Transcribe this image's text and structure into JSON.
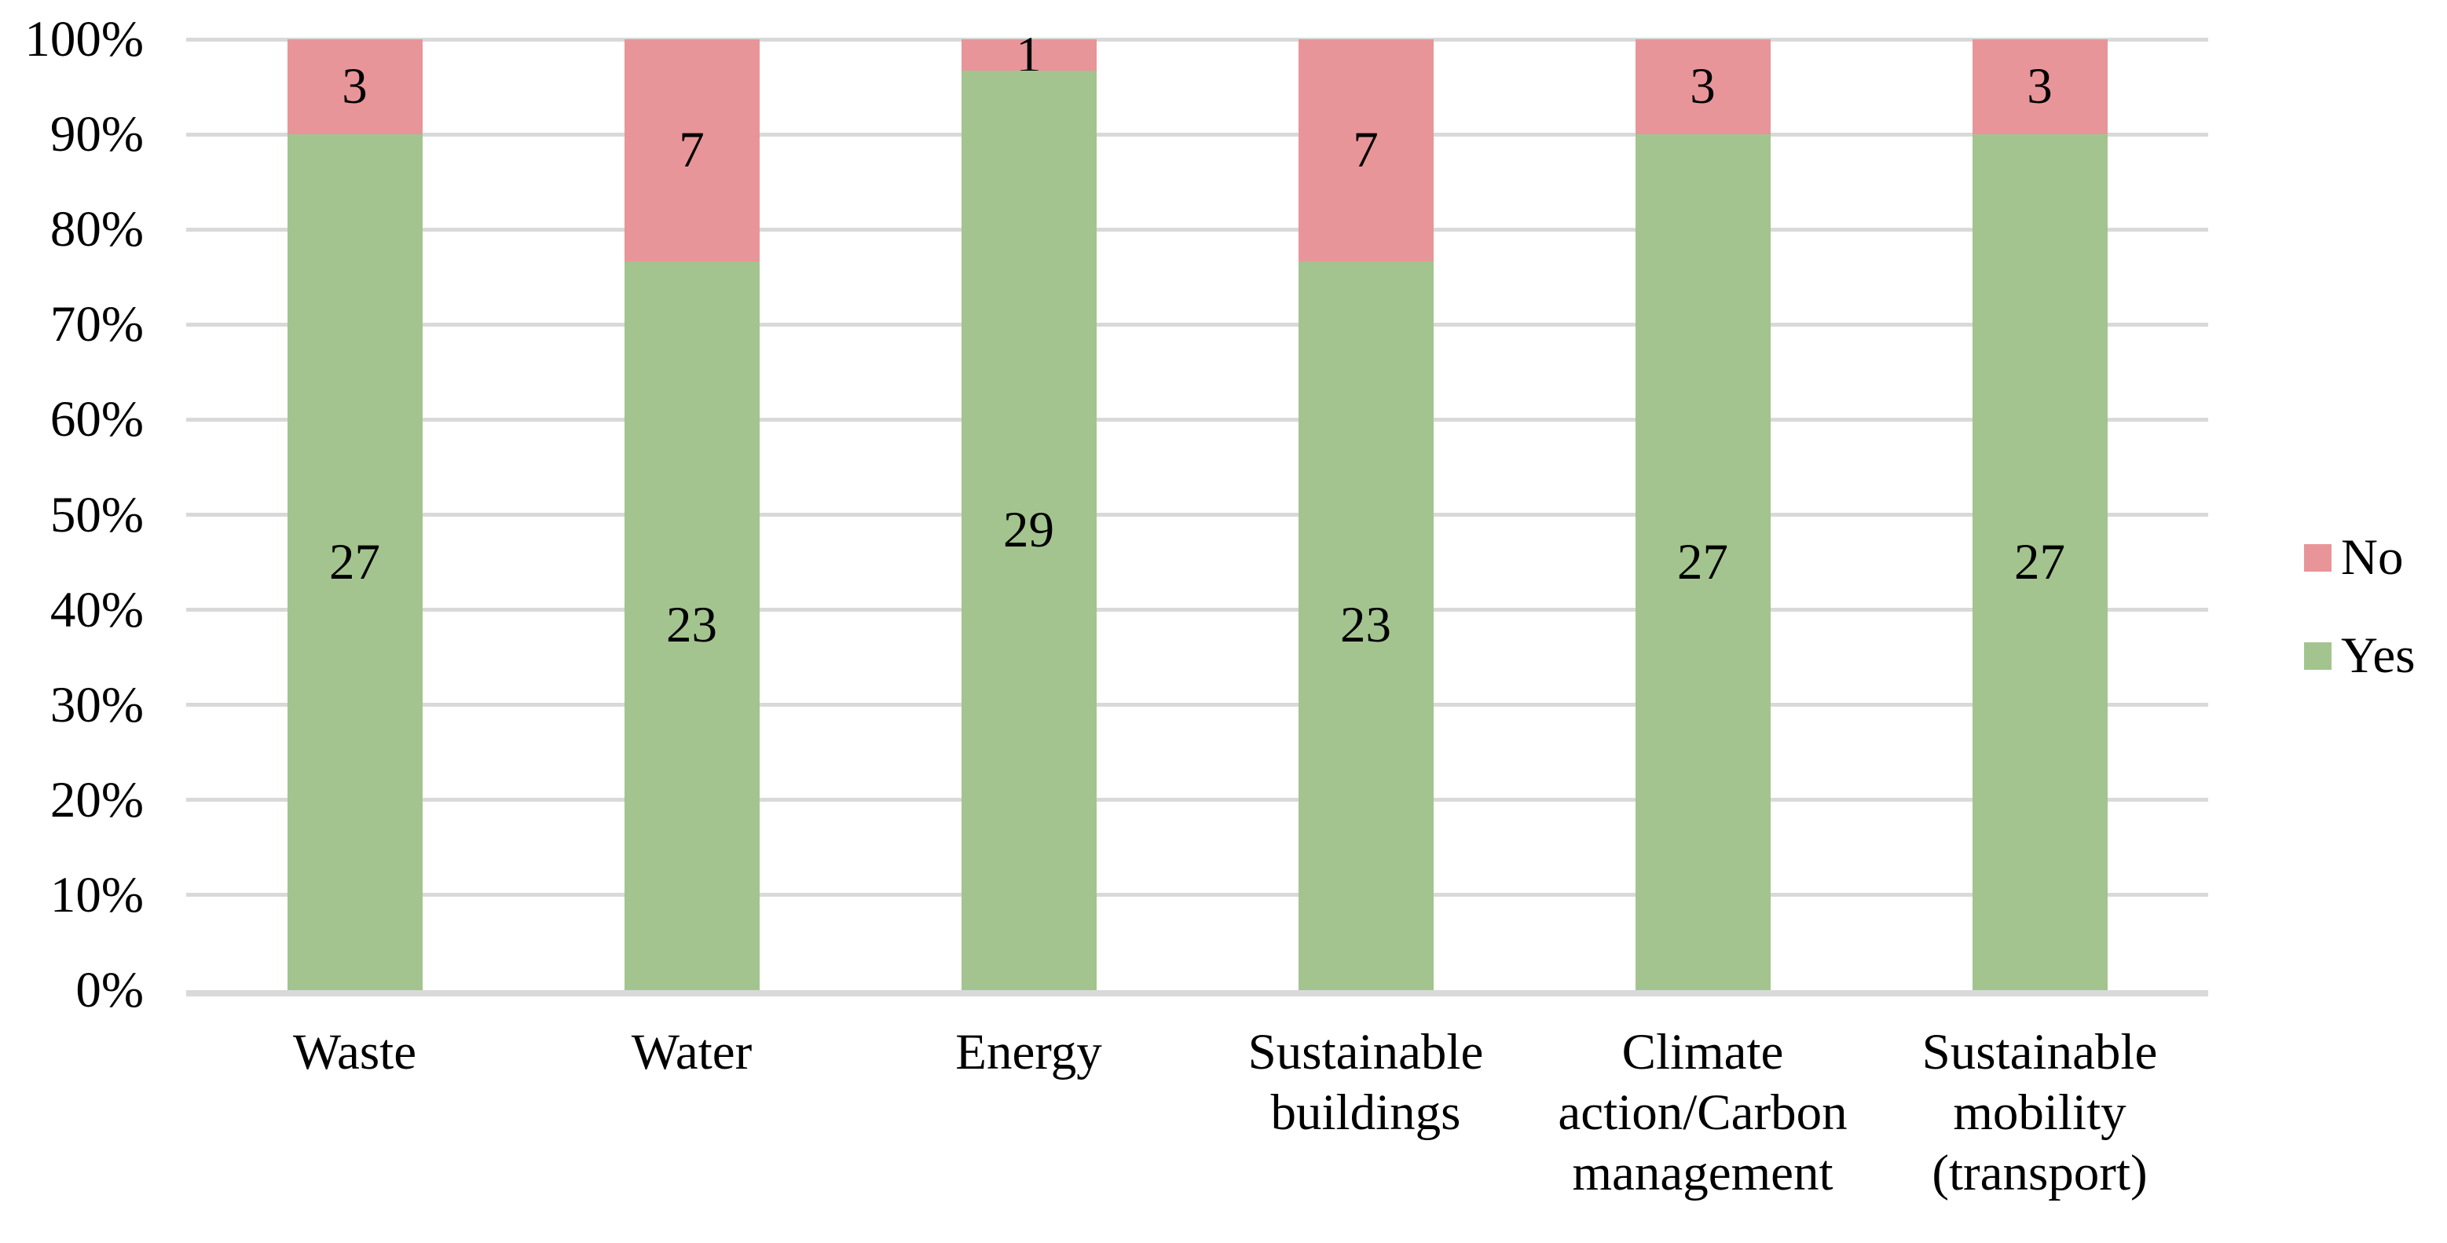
{
  "chart_data": {
    "type": "bar",
    "subtype": "100-percent-stacked-column",
    "title": "",
    "xlabel": "",
    "ylabel": "",
    "categories": [
      "Waste",
      "Water",
      "Energy",
      "Sustainable buildings",
      "Climate action/Carbon management",
      "Sustainable mobility (transport)"
    ],
    "categories_lines": [
      [
        "Waste"
      ],
      [
        "Water"
      ],
      [
        "Energy"
      ],
      [
        "Sustainable",
        "buildings"
      ],
      [
        "Climate",
        "action/Carbon",
        "management"
      ],
      [
        "Sustainable",
        "mobility",
        "(transport)"
      ]
    ],
    "series": [
      {
        "name": "No",
        "color": "#E89599",
        "values": [
          3,
          7,
          1,
          7,
          3,
          3
        ]
      },
      {
        "name": "Yes",
        "color": "#A3C48E",
        "values": [
          27,
          23,
          29,
          23,
          27,
          27
        ]
      }
    ],
    "stack_totals": [
      30,
      30,
      30,
      30,
      30,
      30
    ],
    "y_axis": {
      "min": "0%",
      "max": "100%",
      "ticks": [
        "0%",
        "10%",
        "20%",
        "30%",
        "40%",
        "50%",
        "60%",
        "70%",
        "80%",
        "90%",
        "100%"
      ]
    },
    "legend": {
      "position": "right",
      "entries": [
        {
          "label": "No",
          "color": "#E89599"
        },
        {
          "label": "Yes",
          "color": "#A3C48E"
        }
      ]
    },
    "grid": "horizontal",
    "gridline_color": "#D9D9D9",
    "axis_line_color": "#D9D9D9",
    "text_color": "#000000",
    "background_color": "#FFFFFF"
  }
}
